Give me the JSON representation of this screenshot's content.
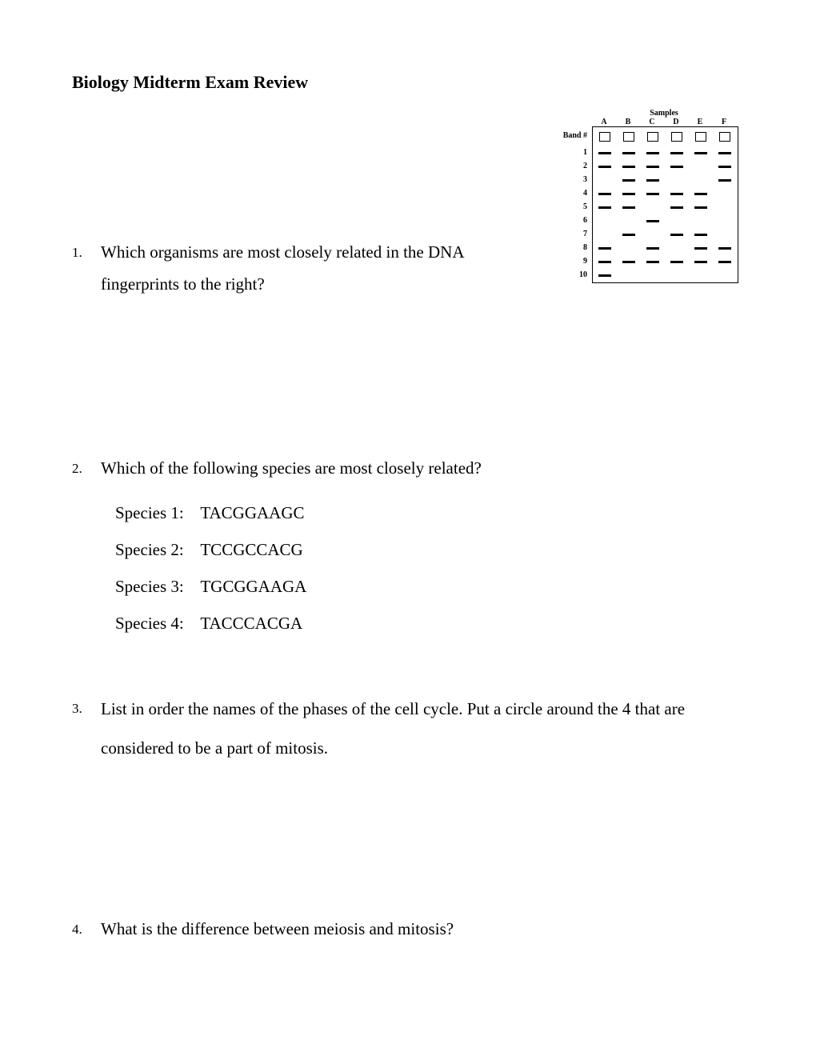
{
  "title": "Biology Midterm Exam Review",
  "gel": {
    "title": "Samples",
    "row_label_header": "Band #",
    "columns": [
      "A",
      "B",
      "C",
      "D",
      "E",
      "F"
    ],
    "row_labels": [
      "1",
      "2",
      "3",
      "4",
      "5",
      "6",
      "7",
      "8",
      "9",
      "10"
    ],
    "bands": [
      [
        1,
        1,
        1,
        1,
        1,
        1
      ],
      [
        1,
        1,
        1,
        1,
        0,
        1
      ],
      [
        0,
        1,
        1,
        0,
        0,
        1
      ],
      [
        1,
        1,
        1,
        1,
        1,
        0
      ],
      [
        1,
        1,
        0,
        1,
        1,
        0
      ],
      [
        0,
        0,
        1,
        0,
        0,
        0
      ],
      [
        0,
        1,
        0,
        1,
        1,
        0
      ],
      [
        1,
        0,
        1,
        0,
        1,
        1
      ],
      [
        1,
        1,
        1,
        1,
        1,
        1
      ],
      [
        1,
        0,
        0,
        0,
        0,
        0
      ]
    ],
    "colors": {
      "line": "#000000",
      "band": "#000000",
      "background": "#ffffff"
    }
  },
  "q1": {
    "num": "1.",
    "text": "Which organisms are most closely related in the DNA fingerprints to the right?"
  },
  "q2": {
    "num": "2.",
    "text": "Which of the following species are most closely related?",
    "species": [
      {
        "label": "Species 1:",
        "seq": "TACGGAAGC"
      },
      {
        "label": "Species 2:",
        "seq": "TCCGCCACG"
      },
      {
        "label": "Species 3:",
        "seq": "TGCGGAAGA"
      },
      {
        "label": "Species 4:",
        "seq": "TACCCACGA"
      }
    ]
  },
  "q3": {
    "num": "3.",
    "text": "List in order the names of the phases of the cell cycle.  Put a circle around the 4 that are considered to be a part of mitosis."
  },
  "q4": {
    "num": "4.",
    "text": "What is the difference between meiosis and mitosis?"
  }
}
